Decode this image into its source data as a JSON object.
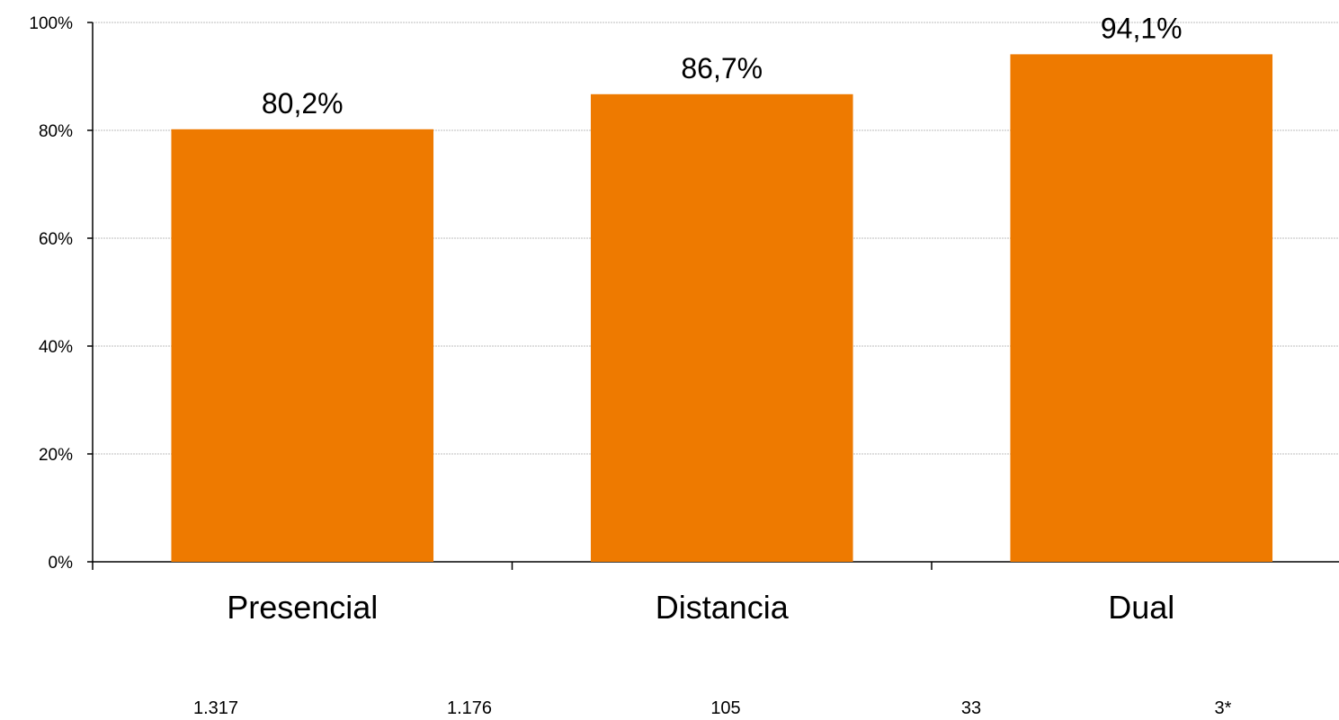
{
  "chart_data": {
    "type": "bar",
    "categories": [
      "Presencial",
      "Distancia",
      "Dual"
    ],
    "values": [
      80.2,
      86.7,
      94.1
    ],
    "data_labels": [
      "80,2%",
      "86,7%",
      "94,1%"
    ],
    "ylim": [
      0,
      100
    ],
    "yticks": [
      0,
      20,
      40,
      60,
      80,
      100
    ],
    "ytick_labels": [
      "0%",
      "20%",
      "40%",
      "60%",
      "80%",
      "100%"
    ],
    "grid": true,
    "bar_color": "#EE7A00",
    "footer_values": [
      "1.317",
      "1.176",
      "105",
      "33",
      "3*"
    ]
  }
}
